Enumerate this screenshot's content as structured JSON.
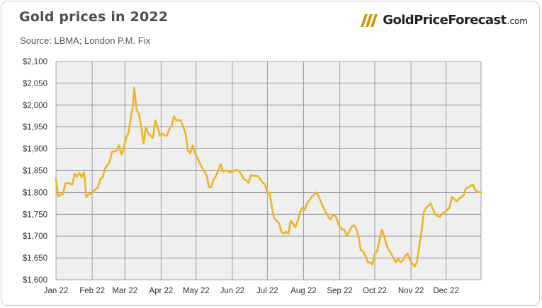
{
  "header": {
    "title": "Gold prices in 2022",
    "subtitle": "Source: LBMA; London P.M. Fix"
  },
  "logo": {
    "brand": "GoldPriceForecast",
    "tld": ".com",
    "icon": "gold-bars-icon",
    "color": "#c99a14"
  },
  "colors": {
    "line": "#f0b323",
    "plot_bg": "#efefef",
    "grid": "#8a8a8a"
  },
  "chart_data": {
    "type": "line",
    "title": "Gold prices in 2022",
    "subtitle": "Source: LBMA; London P.M. Fix",
    "x_tick_labels": [
      "Jan 22",
      "Feb 22",
      "Mar 22",
      "Apr 22",
      "May 22",
      "Jun 22",
      "Jul 22",
      "Aug 22",
      "Sep 22",
      "Oct 22",
      "Nov 22",
      "Dec 22"
    ],
    "y_tick_labels": [
      "$1,600",
      "$1,650",
      "$1,700",
      "$1,750",
      "$1,800",
      "$1,850",
      "$1,900",
      "$1,950",
      "$2,000",
      "$2,050",
      "$2,100"
    ],
    "ylim": [
      1600,
      2100
    ],
    "xlim": [
      "2022-01-01",
      "2022-12-31"
    ],
    "grid": true,
    "series": [
      {
        "x": [
          "2022-01-01",
          "2022-01-03",
          "2022-01-05",
          "2022-01-07",
          "2022-01-09",
          "2022-01-11",
          "2022-01-13",
          "2022-01-15",
          "2022-01-17",
          "2022-01-19",
          "2022-01-21",
          "2022-01-23",
          "2022-01-25",
          "2022-01-27",
          "2022-01-29",
          "2022-01-31",
          "2022-02-02",
          "2022-02-04",
          "2022-02-06",
          "2022-02-08",
          "2022-02-10",
          "2022-02-12",
          "2022-02-14",
          "2022-02-16",
          "2022-02-18",
          "2022-02-20",
          "2022-02-22",
          "2022-02-24",
          "2022-02-26",
          "2022-02-28",
          "2022-03-02",
          "2022-03-04",
          "2022-03-06",
          "2022-03-08",
          "2022-03-09",
          "2022-03-11",
          "2022-03-13",
          "2022-03-15",
          "2022-03-17",
          "2022-03-19",
          "2022-03-21",
          "2022-03-23",
          "2022-03-25",
          "2022-03-27",
          "2022-03-29",
          "2022-03-31",
          "2022-04-02",
          "2022-04-04",
          "2022-04-06",
          "2022-04-08",
          "2022-04-10",
          "2022-04-12",
          "2022-04-14",
          "2022-04-16",
          "2022-04-18",
          "2022-04-20",
          "2022-04-22",
          "2022-04-24",
          "2022-04-26",
          "2022-04-28",
          "2022-04-30",
          "2022-05-02",
          "2022-05-04",
          "2022-05-06",
          "2022-05-08",
          "2022-05-10",
          "2022-05-12",
          "2022-05-14",
          "2022-05-16",
          "2022-05-18",
          "2022-05-20",
          "2022-05-22",
          "2022-05-24",
          "2022-05-26",
          "2022-05-28",
          "2022-05-30",
          "2022-06-01",
          "2022-06-03",
          "2022-06-05",
          "2022-06-07",
          "2022-06-09",
          "2022-06-11",
          "2022-06-13",
          "2022-06-15",
          "2022-06-17",
          "2022-06-19",
          "2022-06-21",
          "2022-06-23",
          "2022-06-25",
          "2022-06-27",
          "2022-06-29",
          "2022-07-01",
          "2022-07-03",
          "2022-07-05",
          "2022-07-07",
          "2022-07-09",
          "2022-07-11",
          "2022-07-13",
          "2022-07-15",
          "2022-07-17",
          "2022-07-19",
          "2022-07-21",
          "2022-07-23",
          "2022-07-25",
          "2022-07-27",
          "2022-07-29",
          "2022-07-31",
          "2022-08-02",
          "2022-08-04",
          "2022-08-06",
          "2022-08-08",
          "2022-08-10",
          "2022-08-12",
          "2022-08-14",
          "2022-08-16",
          "2022-08-18",
          "2022-08-20",
          "2022-08-22",
          "2022-08-24",
          "2022-08-26",
          "2022-08-28",
          "2022-08-30",
          "2022-09-01",
          "2022-09-03",
          "2022-09-05",
          "2022-09-07",
          "2022-09-09",
          "2022-09-11",
          "2022-09-13",
          "2022-09-15",
          "2022-09-17",
          "2022-09-19",
          "2022-09-21",
          "2022-09-23",
          "2022-09-25",
          "2022-09-27",
          "2022-09-29",
          "2022-10-01",
          "2022-10-03",
          "2022-10-05",
          "2022-10-07",
          "2022-10-09",
          "2022-10-11",
          "2022-10-13",
          "2022-10-15",
          "2022-10-17",
          "2022-10-19",
          "2022-10-21",
          "2022-10-23",
          "2022-10-25",
          "2022-10-27",
          "2022-10-29",
          "2022-10-31",
          "2022-11-02",
          "2022-11-04",
          "2022-11-06",
          "2022-11-08",
          "2022-11-10",
          "2022-11-12",
          "2022-11-14",
          "2022-11-16",
          "2022-11-18",
          "2022-11-20",
          "2022-11-22",
          "2022-11-24",
          "2022-11-26",
          "2022-11-28",
          "2022-11-30",
          "2022-12-02",
          "2022-12-04",
          "2022-12-06",
          "2022-12-08",
          "2022-12-10",
          "2022-12-12",
          "2022-12-14",
          "2022-12-16",
          "2022-12-18",
          "2022-12-20",
          "2022-12-22",
          "2022-12-24",
          "2022-12-26",
          "2022-12-28",
          "2022-12-31"
        ],
        "y": [
          1829,
          1791,
          1795,
          1796,
          1820,
          1822,
          1820,
          1818,
          1843,
          1836,
          1845,
          1835,
          1846,
          1790,
          1795,
          1797,
          1802,
          1807,
          1812,
          1830,
          1835,
          1855,
          1862,
          1870,
          1893,
          1894,
          1896,
          1908,
          1887,
          1900,
          1925,
          1935,
          1970,
          2000,
          2040,
          1990,
          1980,
          1950,
          1912,
          1950,
          1935,
          1930,
          1925,
          1965,
          1950,
          1930,
          1935,
          1930,
          1930,
          1945,
          1952,
          1975,
          1965,
          1965,
          1965,
          1950,
          1935,
          1895,
          1890,
          1908,
          1890,
          1880,
          1868,
          1858,
          1848,
          1840,
          1812,
          1812,
          1830,
          1838,
          1850,
          1865,
          1848,
          1850,
          1850,
          1845,
          1848,
          1850,
          1852,
          1848,
          1840,
          1830,
          1828,
          1822,
          1840,
          1838,
          1838,
          1837,
          1830,
          1822,
          1818,
          1800,
          1800,
          1765,
          1740,
          1735,
          1730,
          1710,
          1705,
          1710,
          1705,
          1735,
          1728,
          1720,
          1735,
          1755,
          1765,
          1760,
          1775,
          1782,
          1790,
          1795,
          1800,
          1790,
          1778,
          1765,
          1755,
          1745,
          1738,
          1748,
          1748,
          1735,
          1720,
          1715,
          1715,
          1700,
          1710,
          1720,
          1725,
          1718,
          1700,
          1668,
          1665,
          1655,
          1640,
          1640,
          1635,
          1660,
          1665,
          1690,
          1715,
          1700,
          1680,
          1668,
          1660,
          1650,
          1640,
          1648,
          1640,
          1645,
          1655,
          1660,
          1645,
          1638,
          1630,
          1640,
          1675,
          1710,
          1755,
          1765,
          1770,
          1775,
          1760,
          1750,
          1745,
          1745,
          1752,
          1755,
          1760,
          1765,
          1790,
          1785,
          1780,
          1785,
          1790,
          1792,
          1810,
          1812,
          1815,
          1818,
          1805,
          1802,
          1800
        ]
      }
    ]
  }
}
